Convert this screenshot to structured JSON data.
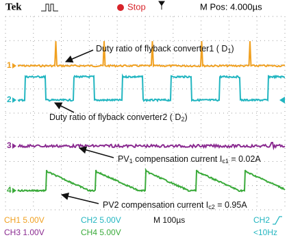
{
  "header": {
    "brand": "Tek",
    "status": "Stop",
    "position": "M Pos: 4.000µs"
  },
  "channel_markers": [
    "1",
    "2",
    "3",
    "4"
  ],
  "annotations": [
    {
      "parts": [
        "Duty ratio of flyback converter1 ( D",
        "1",
        ")"
      ]
    },
    {
      "parts": [
        "Duty ratio of flyback converter2 ( D",
        "2",
        ")"
      ]
    },
    {
      "parts": [
        "PV",
        "1",
        "  compensation current I",
        "c1",
        " = 0.02A"
      ]
    },
    {
      "parts": [
        "PV2  compensation current I",
        "c2",
        " = 0.95A"
      ]
    }
  ],
  "footer": {
    "ch1": "CH1  5.00V",
    "ch2": "CH2  5.00V",
    "timebase": "M 100µs",
    "trigger_source": "CH2",
    "ch3": "CH3  1.00V",
    "ch4": "CH4  5.00V",
    "trigger_freq": "<10Hz"
  }
}
